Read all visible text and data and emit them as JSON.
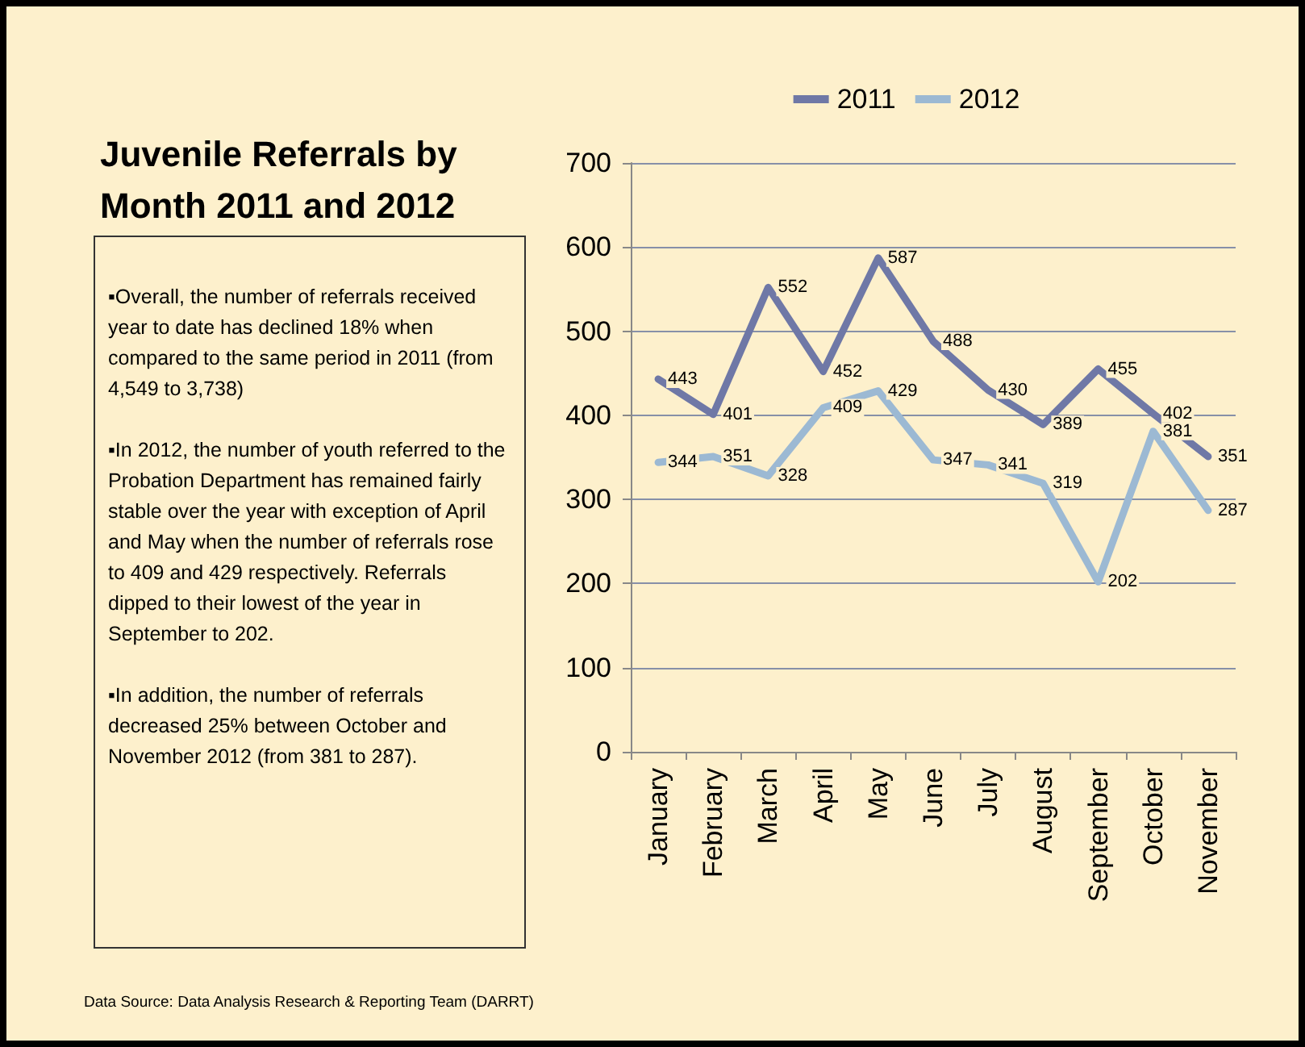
{
  "chart_data": {
    "type": "line",
    "title": "Juvenile Referrals by Month 2011 and 2012",
    "categories": [
      "January",
      "February",
      "March",
      "April",
      "May",
      "June",
      "July",
      "August",
      "September",
      "October",
      "November"
    ],
    "series": [
      {
        "name": "2011",
        "color": "#6f78a6",
        "values": [
          443,
          401,
          552,
          452,
          587,
          488,
          430,
          389,
          455,
          402,
          351
        ]
      },
      {
        "name": "2012",
        "color": "#9cb9d3",
        "values": [
          344,
          351,
          328,
          409,
          429,
          347,
          341,
          319,
          202,
          381,
          287
        ]
      }
    ],
    "ylim": [
      0,
      700
    ],
    "yticks": [
      0,
      100,
      200,
      300,
      400,
      500,
      600,
      700
    ],
    "grid": "y",
    "legend": "top",
    "data_labels": true,
    "marker": "none",
    "line_style": "solid",
    "annotations": [
      "▪Overall, the number of referrals received year to date has declined 18% when compared to the same period in 2011 (from 4,549 to 3,738)",
      "▪In 2012, the number of youth referred to the Probation Department has remained fairly stable over the year with exception of April and May when the number of referrals rose to 409 and 429 respectively.  Referrals dipped to their lowest of the year in September to 202.",
      "▪In addition, the number of referrals decreased 25% between October and November 2012 (from 381 to 287).",
      "Data Source: Data Analysis Research & Reporting Team (DARRT)"
    ]
  }
}
